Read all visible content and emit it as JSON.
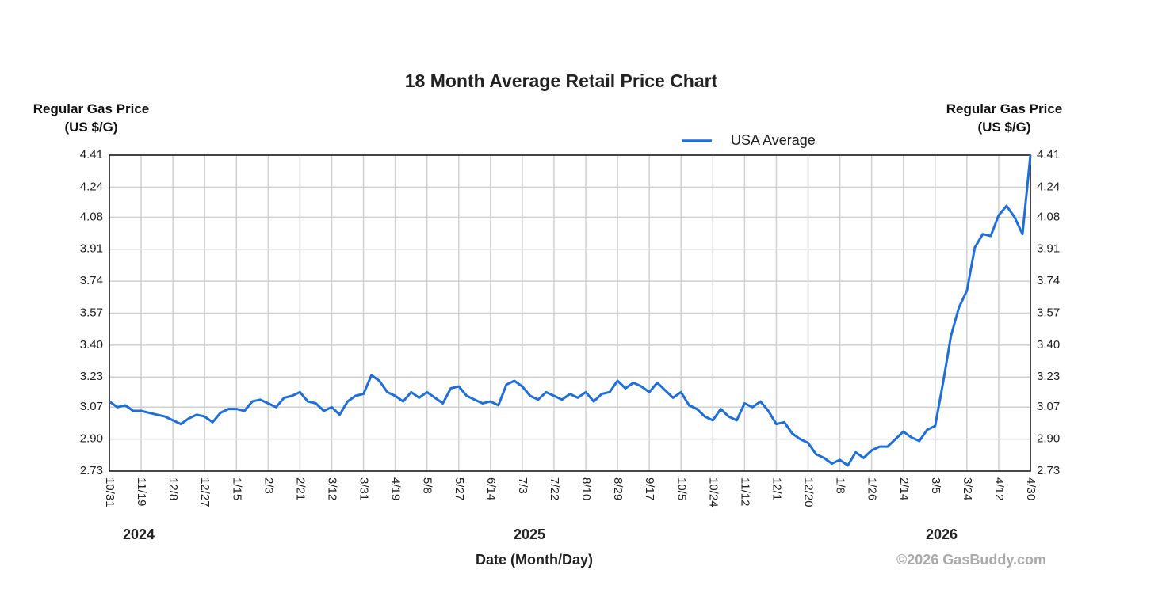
{
  "chart_data": {
    "type": "line",
    "title": "18 Month Average Retail Price Chart",
    "ylabel": "Regular Gas Price (US $/G)",
    "y2label": "Regular Gas Price (US $/G)",
    "xlabel": "Date (Month/Day)",
    "copyright": "©2026 GasBuddy.com",
    "year_labels": [
      "2024",
      "2025",
      "2026"
    ],
    "categories": [
      "10/31",
      null,
      null,
      null,
      "11/19",
      null,
      null,
      null,
      "12/8",
      null,
      null,
      null,
      "12/27",
      null,
      null,
      null,
      "1/15",
      null,
      null,
      null,
      "2/3",
      null,
      null,
      null,
      "2/21",
      null,
      null,
      null,
      "3/12",
      null,
      null,
      null,
      "3/31",
      null,
      null,
      null,
      "4/19",
      null,
      null,
      null,
      "5/8",
      null,
      null,
      null,
      "5/27",
      null,
      null,
      null,
      "6/14",
      null,
      null,
      null,
      "7/3",
      null,
      null,
      null,
      "7/22",
      null,
      null,
      null,
      "8/10",
      null,
      null,
      null,
      "8/29",
      null,
      null,
      null,
      "9/17",
      null,
      null,
      null,
      "10/5",
      null,
      null,
      null,
      "10/24",
      null,
      null,
      null,
      "11/12",
      null,
      null,
      null,
      "12/1",
      null,
      null,
      null,
      "12/20",
      null,
      null,
      null,
      "1/8",
      null,
      null,
      null,
      "1/26",
      null,
      null,
      null,
      "2/14",
      null,
      null,
      null,
      "3/5",
      null,
      null,
      null,
      "3/24",
      null,
      null,
      null,
      "4/12",
      null,
      null,
      null,
      "4/30"
    ],
    "series": [
      {
        "name": "USA Average",
        "color": "#1e6fdc",
        "values": [
          3.1,
          3.07,
          3.08,
          3.05,
          3.05,
          3.04,
          3.03,
          3.02,
          3.0,
          2.98,
          3.01,
          3.03,
          3.02,
          2.99,
          3.04,
          3.06,
          3.06,
          3.05,
          3.1,
          3.11,
          3.09,
          3.07,
          3.12,
          3.13,
          3.15,
          3.1,
          3.09,
          3.05,
          3.07,
          3.03,
          3.1,
          3.13,
          3.14,
          3.24,
          3.21,
          3.15,
          3.13,
          3.1,
          3.15,
          3.12,
          3.15,
          3.12,
          3.09,
          3.17,
          3.18,
          3.13,
          3.11,
          3.09,
          3.1,
          3.08,
          3.19,
          3.21,
          3.18,
          3.13,
          3.11,
          3.15,
          3.13,
          3.11,
          3.14,
          3.12,
          3.15,
          3.1,
          3.14,
          3.15,
          3.21,
          3.17,
          3.2,
          3.18,
          3.15,
          3.2,
          3.16,
          3.12,
          3.15,
          3.08,
          3.06,
          3.02,
          3.0,
          3.06,
          3.02,
          3.0,
          3.09,
          3.07,
          3.1,
          3.05,
          2.98,
          2.99,
          2.93,
          2.9,
          2.88,
          2.82,
          2.8,
          2.77,
          2.79,
          2.76,
          2.83,
          2.8,
          2.84,
          2.86,
          2.86,
          2.9,
          2.94,
          2.91,
          2.89,
          2.95,
          2.97,
          3.2,
          3.45,
          3.6,
          3.69,
          3.92,
          3.99,
          3.98,
          4.09,
          4.14,
          4.08,
          3.99,
          4.41
        ]
      }
    ],
    "ylim": [
      2.73,
      4.41
    ],
    "yticks": [
      2.73,
      {
        "value": 2.9,
        "label": "2.90"
      },
      3.07,
      3.23,
      {
        "value": 3.4,
        "label": "3.40"
      },
      3.57,
      3.74,
      3.91,
      4.08,
      4.24,
      4.41
    ],
    "grid": true,
    "legend": "top"
  }
}
